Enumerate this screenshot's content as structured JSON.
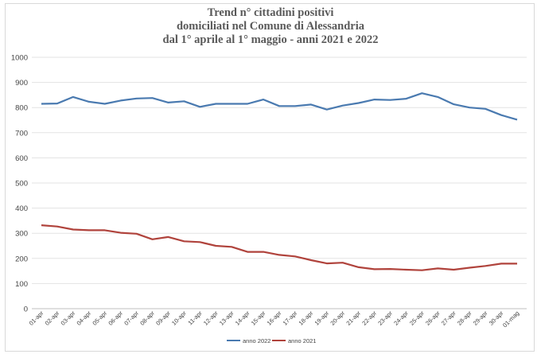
{
  "chart_data": {
    "type": "line",
    "title": [
      "Trend n° cittadini positivi",
      "domiciliati nel Comune di Alessandria",
      "dal 1° aprile al 1° maggio - anni 2021 e 2022"
    ],
    "xlabel": "",
    "ylabel": "",
    "ylim": [
      0,
      1000
    ],
    "yticks": [
      0,
      100,
      200,
      300,
      400,
      500,
      600,
      700,
      800,
      900,
      1000
    ],
    "grid": true,
    "legend": "bottom-center",
    "categories": [
      "01-apr",
      "02-apr",
      "03-apr",
      "04-apr",
      "05-apr",
      "06-apr",
      "07-apr",
      "08-apr",
      "09-apr",
      "10-apr",
      "11-apr",
      "12-apr",
      "13-apr",
      "14-apr",
      "15-apr",
      "16-apr",
      "17-apr",
      "18-apr",
      "19-apr",
      "20-apr",
      "21-apr",
      "22-apr",
      "23-apr",
      "24-apr",
      "25-apr",
      "26-apr",
      "27-apr",
      "28-apr",
      "29-apr",
      "30-apr",
      "01-mag"
    ],
    "series": [
      {
        "name": "anno 2022",
        "color": "#4a7ab0",
        "values": [
          815,
          816,
          842,
          823,
          815,
          828,
          836,
          838,
          820,
          825,
          803,
          815,
          815,
          815,
          832,
          806,
          806,
          812,
          792,
          808,
          818,
          832,
          830,
          835,
          857,
          842,
          813,
          800,
          795,
          770,
          752
        ]
      },
      {
        "name": "anno 2021",
        "color": "#b0433c",
        "values": [
          332,
          327,
          315,
          312,
          312,
          302,
          298,
          276,
          285,
          268,
          265,
          250,
          246,
          226,
          226,
          214,
          208,
          193,
          180,
          183,
          165,
          157,
          158,
          155,
          153,
          160,
          155,
          163,
          170,
          179,
          179
        ]
      }
    ]
  }
}
